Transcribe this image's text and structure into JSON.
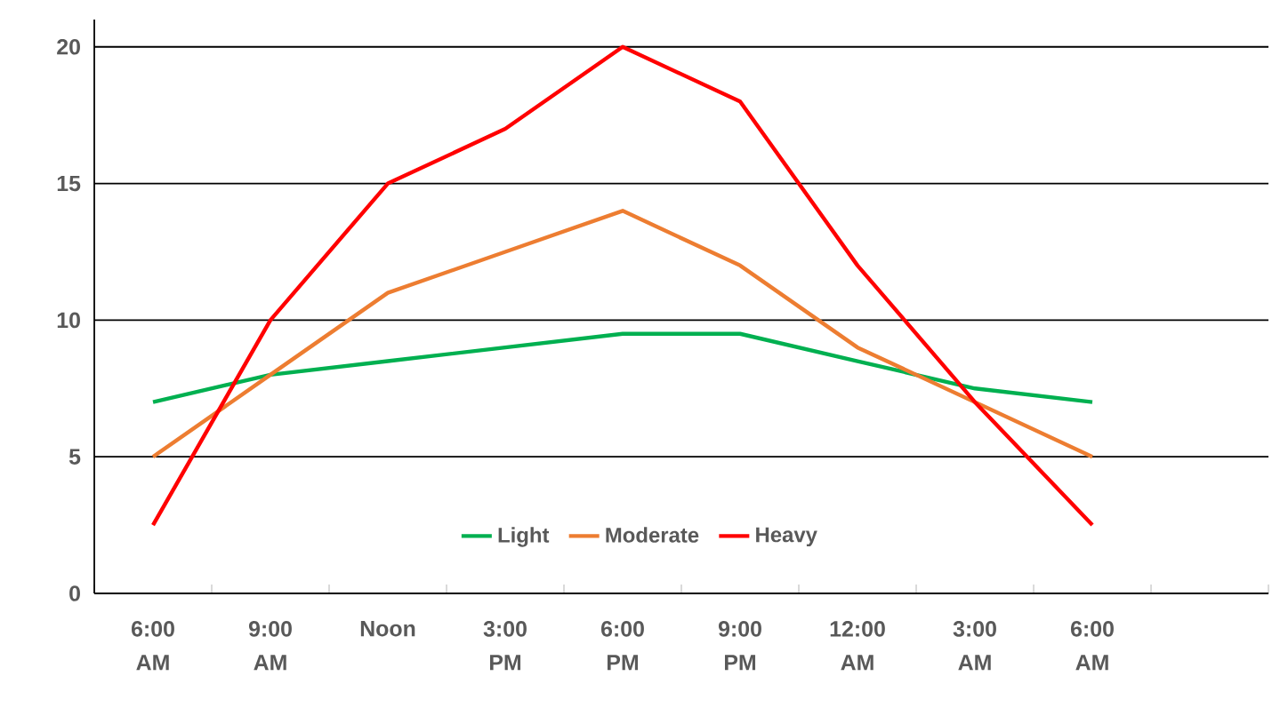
{
  "chart_data": {
    "type": "line",
    "categories": [
      "6:00 AM",
      "9:00 AM",
      "Noon",
      "3:00 PM",
      "6:00 PM",
      "9:00 PM",
      "12:00 AM",
      "3:00 AM",
      "6:00 AM",
      null
    ],
    "series": [
      {
        "name": "Light",
        "color": "#00b050",
        "values": [
          7,
          8,
          8.5,
          9,
          9.5,
          9.5,
          8.5,
          7.5,
          7,
          null
        ]
      },
      {
        "name": "Moderate",
        "color": "#ed7d31",
        "values": [
          5,
          8,
          11,
          12.5,
          14,
          12,
          9,
          7,
          5,
          null
        ]
      },
      {
        "name": "Heavy",
        "color": "#ff0000",
        "values": [
          2.5,
          10,
          15,
          17,
          20,
          18,
          12,
          7,
          2.5,
          null
        ]
      }
    ],
    "ylim": [
      0,
      21
    ],
    "yticks": [
      0,
      5,
      10,
      15,
      20
    ],
    "grid": "y",
    "legend": "bottom",
    "marker": "none",
    "line_style": "solid"
  }
}
